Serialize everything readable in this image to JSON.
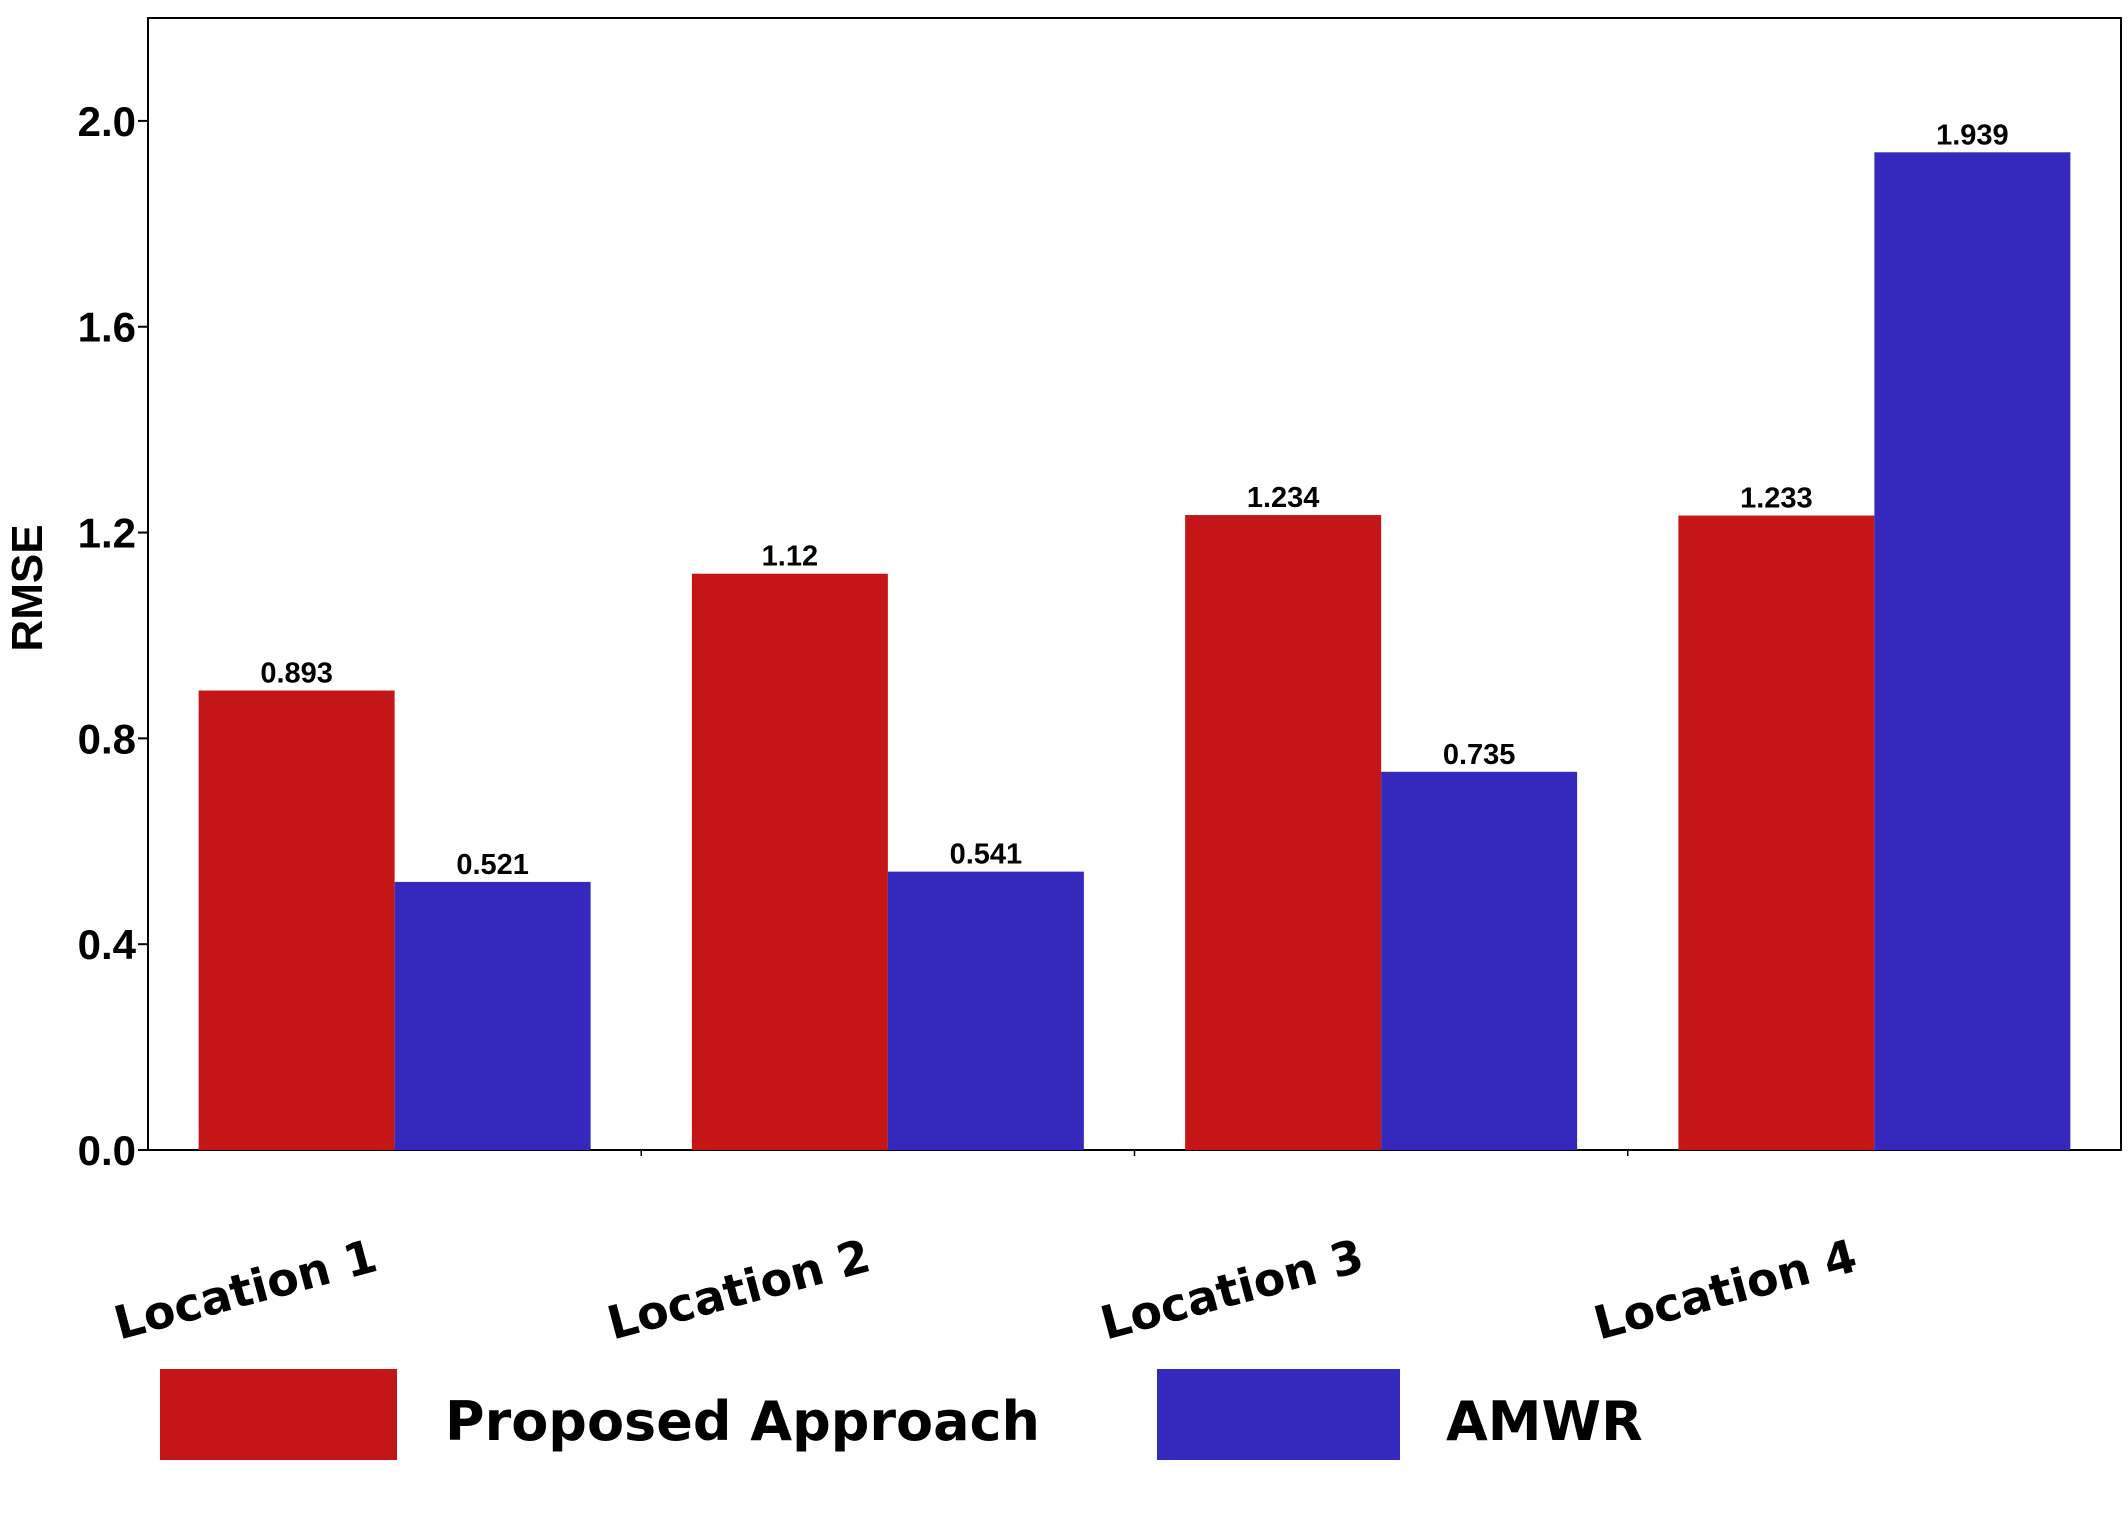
{
  "chart_data": {
    "type": "bar",
    "title": "",
    "xlabel": "",
    "ylabel": "RMSE",
    "ylim": [
      0,
      2.2
    ],
    "yticks": [
      0.0,
      0.4,
      0.8,
      1.2,
      1.6,
      2.0
    ],
    "ytick_labels": [
      "0.0",
      "0.4",
      "0.8",
      "1.2",
      "1.6",
      "2.0"
    ],
    "categories": [
      "Location 1",
      "Location 2",
      "Location 3",
      "Location 4"
    ],
    "series": [
      {
        "name": "Proposed Approach",
        "color": "#c41616",
        "values": [
          0.893,
          1.12,
          1.234,
          1.233
        ],
        "labels": [
          "0.893",
          "1.12",
          "1.234",
          "1.233"
        ]
      },
      {
        "name": "AMWR",
        "color": "#3529bd",
        "values": [
          0.521,
          0.541,
          0.735,
          1.939
        ],
        "labels": [
          "0.521",
          "0.541",
          "0.735",
          "1.939"
        ]
      }
    ],
    "legend": {
      "position": "bottom",
      "entries": [
        {
          "label": "Proposed Approach",
          "color": "#c41616"
        },
        {
          "label": "AMWR",
          "color": "#3529bd"
        }
      ]
    },
    "grid": false
  }
}
